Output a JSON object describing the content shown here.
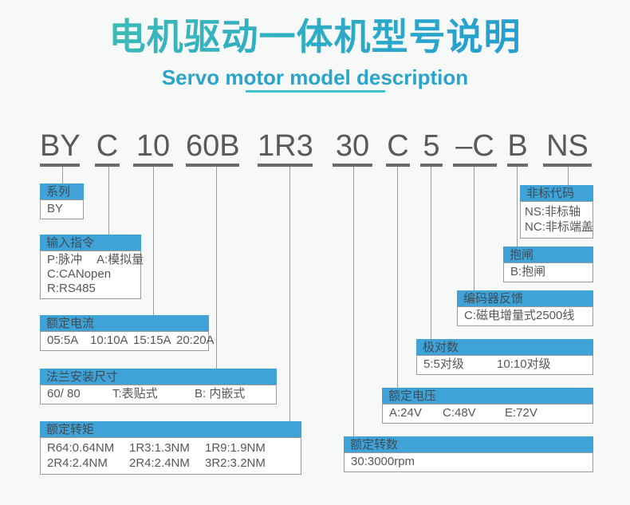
{
  "header": {
    "title": "电机驱动一体机型号说明",
    "subtitle": "Servo motor model description"
  },
  "model_code": {
    "full": "BY C 10 60B 1R3 30 C 5 –C B NS",
    "segments": [
      "BY",
      "C",
      "10",
      "60B",
      "1R3",
      "30",
      "C",
      "5",
      "–C",
      "B",
      "NS"
    ]
  },
  "legend_boxes": [
    {
      "key": "series",
      "title": "系列",
      "rows": [
        [
          "BY"
        ]
      ]
    },
    {
      "key": "input-command",
      "title": "输入指令",
      "rows": [
        [
          "P:脉冲",
          "A:模拟量"
        ],
        [
          "C:CANopen"
        ],
        [
          "R:RS485"
        ]
      ]
    },
    {
      "key": "rated-current",
      "title": "额定电流",
      "rows": [
        [
          "05:5A",
          "10:10A",
          "15:15A",
          "20:20A"
        ]
      ]
    },
    {
      "key": "flange-size",
      "title": "法兰安装尺寸",
      "rows": [
        [
          "60/ 80",
          "T:表贴式",
          "B: 内嵌式"
        ]
      ]
    },
    {
      "key": "rated-torque",
      "title": "额定转矩",
      "rows": [
        [
          "R64:0.64NM",
          "1R3:1.3NM",
          "1R9:1.9NM"
        ],
        [
          "2R4:2.4NM",
          "2R4:2.4NM",
          "3R2:3.2NM"
        ]
      ]
    },
    {
      "key": "rated-speed",
      "title": "额定转数",
      "rows": [
        [
          "30:3000rpm"
        ]
      ]
    },
    {
      "key": "rated-voltage",
      "title": "额定电压",
      "rows": [
        [
          "A:24V",
          "C:48V",
          "E:72V"
        ]
      ]
    },
    {
      "key": "pole-pairs",
      "title": "极对数",
      "rows": [
        [
          "5:5对级",
          "10:10对级"
        ]
      ]
    },
    {
      "key": "encoder-feedback",
      "title": "编码器反馈",
      "rows": [
        [
          "C:磁电增量式2500线"
        ]
      ]
    },
    {
      "key": "brake",
      "title": "抱闸",
      "rows": [
        [
          "B:抱闸"
        ]
      ]
    },
    {
      "key": "non-standard-code",
      "title": "非标代码",
      "rows": [
        [
          "NS:非标轴"
        ],
        [
          "NC:非标端盖"
        ]
      ]
    }
  ],
  "colors": {
    "background": "#f7f8f8",
    "box_header_blue": "#3fa3d8",
    "box_header_text": "#3f4c56",
    "box_border_gray": "#9b9b9b",
    "body_text_gray": "#555759",
    "code_text_gray": "#58595b",
    "connector_gray": "#9c9c9c",
    "title_gradient_start": "#47c2ae",
    "title_gradient_end": "#1f97d8",
    "subtitle_teal": "#2ba4cb",
    "subtitle_rule_teal": "#3fc2d2"
  }
}
